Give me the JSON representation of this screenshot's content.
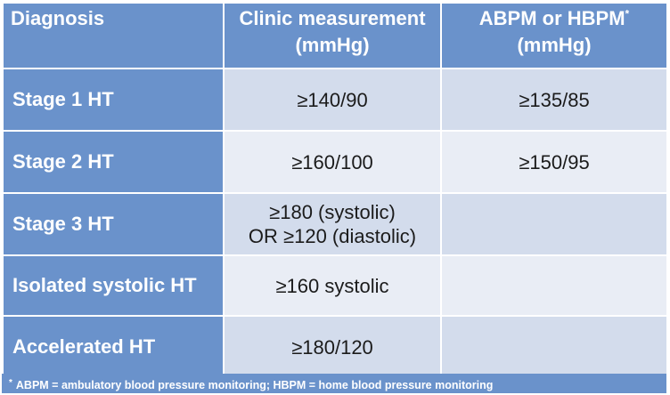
{
  "table": {
    "headers": {
      "diagnosis": "Diagnosis",
      "clinic_line1": "Clinic measurement",
      "clinic_line2": "(mmHg)",
      "abpm_line1": "ABPM or HBPM",
      "abpm_marker": "*",
      "abpm_line2": "(mmHg)"
    },
    "rows": [
      {
        "diagnosis": "Stage 1 HT",
        "clinic": [
          "≥140/90"
        ],
        "abpm": "≥135/85"
      },
      {
        "diagnosis": "Stage 2 HT",
        "clinic": [
          "≥160/100"
        ],
        "abpm": "≥150/95"
      },
      {
        "diagnosis": "Stage 3 HT",
        "clinic": [
          "≥180 (systolic)",
          "OR ≥120 (diastolic)"
        ],
        "abpm": ""
      },
      {
        "diagnosis": "Isolated systolic HT",
        "clinic": [
          "≥160 systolic"
        ],
        "abpm": ""
      },
      {
        "diagnosis": "Accelerated HT",
        "clinic": [
          "≥180/120"
        ],
        "abpm": ""
      }
    ]
  },
  "footnote": {
    "marker": "*",
    "text": "ABPM = ambulatory blood pressure monitoring; HBPM = home blood pressure monitoring"
  },
  "colors": {
    "header_blue": "#6a92cb",
    "row_light": "#d3dcec",
    "row_lighter": "#e9edf5",
    "text_dark": "#1b1b1b"
  }
}
